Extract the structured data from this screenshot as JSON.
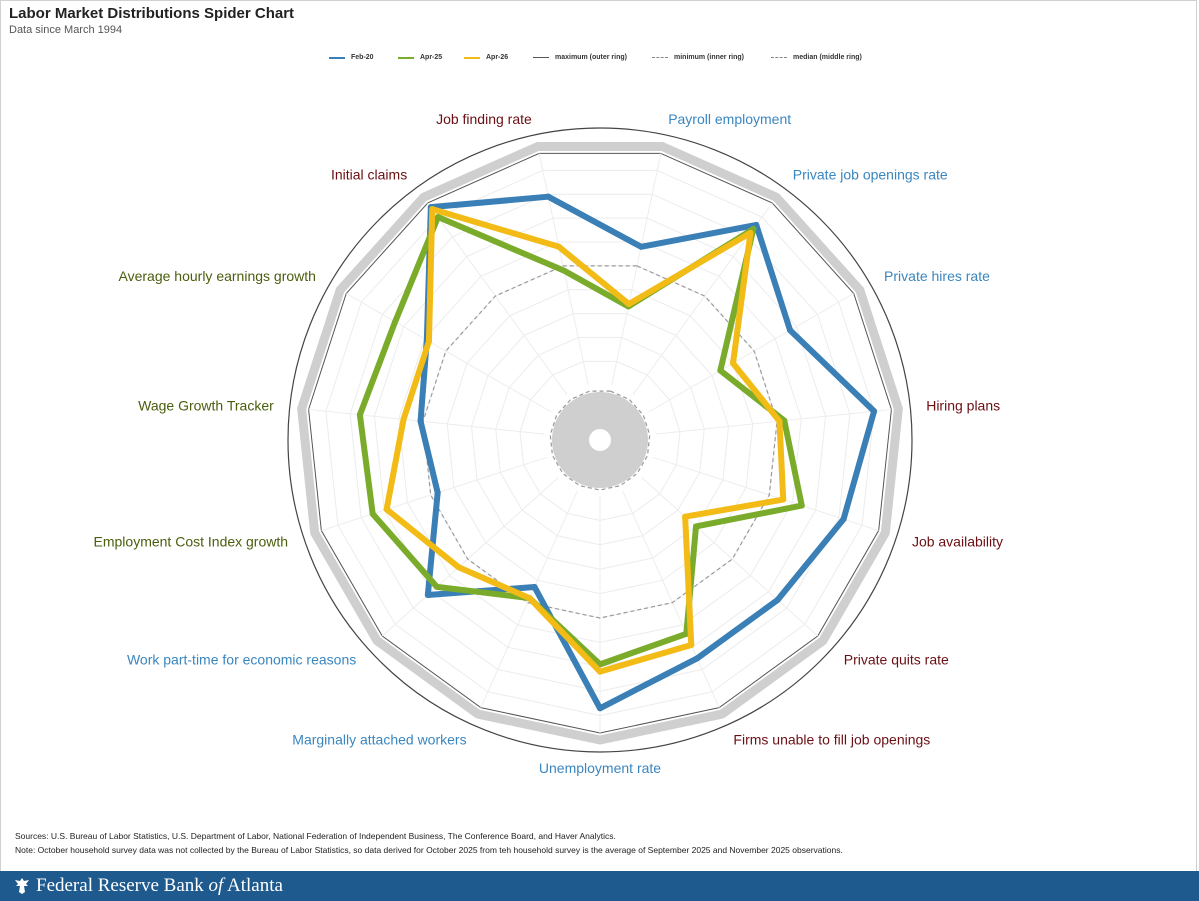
{
  "header": {
    "title": "Labor Market Distributions Spider Chart",
    "subtitle": "Data since March 1994"
  },
  "legend": {
    "items": [
      {
        "label": "Feb-20",
        "color": "#3a7fb5",
        "style": "solid"
      },
      {
        "label": "Apr-25",
        "color": "#7aab2a",
        "style": "solid"
      },
      {
        "label": "Apr-26",
        "color": "#f2bb16",
        "style": "solid"
      },
      {
        "label": "maximum (outer ring)",
        "color": "#555555",
        "style": "solid"
      },
      {
        "label": "minimum (inner ring)",
        "color": "#888888",
        "style": "dashed"
      },
      {
        "label": "median (middle ring)",
        "color": "#888888",
        "style": "dashed"
      }
    ]
  },
  "chart_data": {
    "type": "radar",
    "title": "Labor Market Distributions Spider Chart",
    "subtitle": "Data since March 1994",
    "scale": "percentile",
    "range": [
      0,
      100
    ],
    "axes": [
      {
        "label": "Payroll employment",
        "color": "#3a86bf"
      },
      {
        "label": "Private job openings rate",
        "color": "#3a86bf"
      },
      {
        "label": "Private hires rate",
        "color": "#3a86bf"
      },
      {
        "label": "Hiring plans",
        "color": "#6b0f14"
      },
      {
        "label": "Job availability",
        "color": "#6b0f14"
      },
      {
        "label": "Private quits rate",
        "color": "#6b0f14"
      },
      {
        "label": "Firms unable to fill job openings",
        "color": "#6b0f14"
      },
      {
        "label": "Unemployment rate",
        "color": "#3a86bf"
      },
      {
        "label": "Marginally attached workers",
        "color": "#3a86bf"
      },
      {
        "label": "Work part-time for economic reasons",
        "color": "#3a86bf"
      },
      {
        "label": "Employment Cost Index growth",
        "color": "#4a5e0e"
      },
      {
        "label": "Wage Growth Tracker",
        "color": "#4a5e0e"
      },
      {
        "label": "Average hourly earnings growth",
        "color": "#4a5e0e"
      },
      {
        "label": "Initial claims",
        "color": "#6b0f14"
      },
      {
        "label": "Job finding rate",
        "color": "#6b0f14"
      }
    ],
    "series": [
      {
        "name": "Feb-20",
        "color": "#3a7fb5",
        "values": [
          58,
          86,
          67,
          90,
          82,
          75,
          75,
          87,
          43,
          72,
          47,
          51,
          59,
          95,
          79
        ]
      },
      {
        "name": "Apr-25",
        "color": "#7aab2a",
        "values": [
          33,
          84,
          34,
          53,
          64,
          30,
          64,
          69,
          48,
          67,
          75,
          76,
          74,
          90,
          48
        ]
      },
      {
        "name": "Apr-26",
        "color": "#f2bb16",
        "values": [
          34,
          82,
          40,
          51,
          56,
          24,
          69,
          72,
          48,
          55,
          69,
          58,
          58,
          94,
          58
        ]
      }
    ],
    "reference_rings": [
      "maximum (outer ring)",
      "minimum (inner ring)",
      "median (middle ring)"
    ]
  },
  "notes": {
    "sources": "Sources: U.S. Bureau of Labor Statistics, U.S. Department of Labor, National Federation of Independent Business, The Conference Board, and Haver Analytics.",
    "note": "Note: October household survey data was not collected by the Bureau of Labor Statistics, so data derived for October 2025 from teh household survey is the average of September 2025 and November 2025 observations."
  },
  "footer": {
    "org_pre": "Federal Reserve Bank ",
    "org_of": "of",
    "org_post": " Atlanta"
  }
}
